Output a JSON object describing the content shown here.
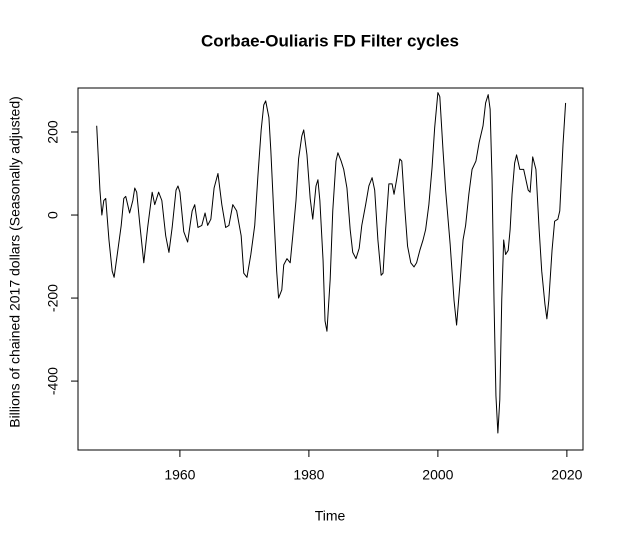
{
  "chart_data": {
    "type": "line",
    "title": "Corbae-Ouliaris FD Filter cycles",
    "x_label": "Time",
    "y_label": "Billions of chained 2017 dollars (Seasonally adjusted)",
    "color": "#000000",
    "x": [
      1947.1,
      1947.6,
      1947.9,
      1948.2,
      1948.5,
      1949.0,
      1949.5,
      1949.8,
      1950.2,
      1950.9,
      1951.3,
      1951.6,
      1951.9,
      1952.2,
      1952.7,
      1953.0,
      1953.3,
      1953.8,
      1954.4,
      1955.0,
      1955.7,
      1956.1,
      1956.7,
      1957.2,
      1957.8,
      1958.3,
      1958.8,
      1959.4,
      1959.7,
      1960.0,
      1960.6,
      1961.2,
      1961.9,
      1962.3,
      1962.8,
      1963.4,
      1963.9,
      1964.3,
      1964.8,
      1965.3,
      1965.9,
      1966.5,
      1967.1,
      1967.6,
      1968.2,
      1968.8,
      1969.5,
      1969.9,
      1970.4,
      1971.0,
      1971.6,
      1972.1,
      1972.6,
      1973.0,
      1973.3,
      1973.8,
      1974.1,
      1974.6,
      1975.0,
      1975.3,
      1975.8,
      1976.1,
      1976.6,
      1977.1,
      1977.5,
      1978.0,
      1978.4,
      1978.9,
      1979.2,
      1979.7,
      1980.2,
      1980.6,
      1981.1,
      1981.4,
      1981.7,
      1982.2,
      1982.5,
      1982.8,
      1983.3,
      1983.7,
      1984.2,
      1984.5,
      1985.0,
      1985.4,
      1985.9,
      1986.4,
      1986.8,
      1987.3,
      1987.8,
      1988.2,
      1988.8,
      1989.3,
      1989.8,
      1990.2,
      1990.7,
      1991.2,
      1991.5,
      1991.9,
      1992.4,
      1992.9,
      1993.2,
      1993.6,
      1994.1,
      1994.4,
      1994.9,
      1995.3,
      1995.8,
      1996.3,
      1996.7,
      1997.2,
      1997.7,
      1998.1,
      1998.6,
      1999.1,
      1999.5,
      2000.0,
      2000.3,
      2000.8,
      2001.2,
      2001.9,
      2002.5,
      2002.9,
      2003.4,
      2003.9,
      2004.3,
      2004.8,
      2005.3,
      2005.9,
      2006.4,
      2007.0,
      2007.4,
      2007.8,
      2008.1,
      2008.4,
      2008.7,
      2009.0,
      2009.3,
      2009.6,
      2009.9,
      2010.2,
      2010.5,
      2010.9,
      2011.2,
      2011.5,
      2011.9,
      2012.2,
      2012.7,
      2013.3,
      2014.0,
      2014.3,
      2014.7,
      2015.2,
      2015.7,
      2016.1,
      2016.6,
      2016.9,
      2017.2,
      2017.7,
      2018.1,
      2018.6,
      2018.9,
      2019.4,
      2019.8
    ],
    "values": [
      215,
      60,
      0,
      35,
      40,
      -60,
      -135,
      -150,
      -105,
      -25,
      40,
      45,
      25,
      5,
      35,
      65,
      55,
      -25,
      -115,
      -30,
      55,
      25,
      55,
      35,
      -50,
      -90,
      -30,
      60,
      70,
      55,
      -40,
      -65,
      10,
      25,
      -30,
      -25,
      5,
      -25,
      -10,
      65,
      100,
      25,
      -30,
      -25,
      25,
      10,
      -50,
      -140,
      -150,
      -95,
      -25,
      95,
      205,
      265,
      275,
      235,
      155,
      -10,
      -135,
      -200,
      -180,
      -120,
      -105,
      -115,
      -50,
      35,
      135,
      190,
      205,
      145,
      40,
      -10,
      70,
      85,
      35,
      -110,
      -255,
      -280,
      -155,
      10,
      130,
      150,
      130,
      110,
      65,
      -35,
      -90,
      -105,
      -80,
      -25,
      25,
      70,
      90,
      60,
      -60,
      -145,
      -140,
      -35,
      75,
      75,
      50,
      85,
      135,
      130,
      10,
      -75,
      -115,
      -125,
      -115,
      -85,
      -60,
      -35,
      25,
      115,
      210,
      295,
      285,
      155,
      60,
      -70,
      -205,
      -265,
      -170,
      -60,
      -25,
      50,
      110,
      130,
      175,
      215,
      270,
      290,
      255,
      85,
      -205,
      -435,
      -525,
      -445,
      -205,
      -60,
      -95,
      -85,
      -35,
      50,
      125,
      145,
      110,
      110,
      60,
      55,
      140,
      110,
      -35,
      -135,
      -215,
      -250,
      -205,
      -85,
      -15,
      -10,
      10,
      170,
      270
    ],
    "xlim": [
      1944.2,
      2022.5
    ],
    "ylim": [
      -566,
      306
    ],
    "xticks": [
      1960,
      1980,
      2000,
      2020
    ],
    "yticks": [
      -400,
      -200,
      0,
      200
    ]
  }
}
